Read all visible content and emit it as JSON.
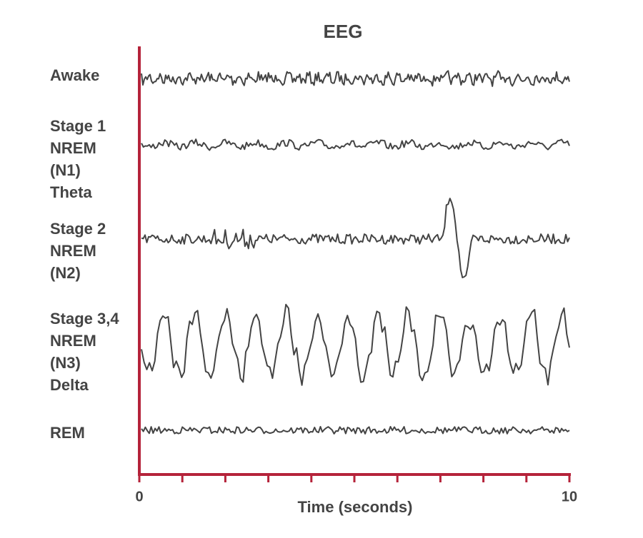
{
  "title": "EEG",
  "x_axis": {
    "label": "Time (seconds)",
    "ticks": [
      "0",
      "10"
    ]
  },
  "rows": [
    {
      "lines": [
        "Awake"
      ]
    },
    {
      "lines": [
        "Stage 1",
        "NREM",
        "(N1)",
        "Theta"
      ]
    },
    {
      "lines": [
        "Stage 2",
        "NREM",
        "(N2)"
      ]
    },
    {
      "lines": [
        "Stage 3,4",
        "NREM",
        "(N3)",
        "Delta"
      ]
    },
    {
      "lines": [
        "REM"
      ]
    }
  ]
}
